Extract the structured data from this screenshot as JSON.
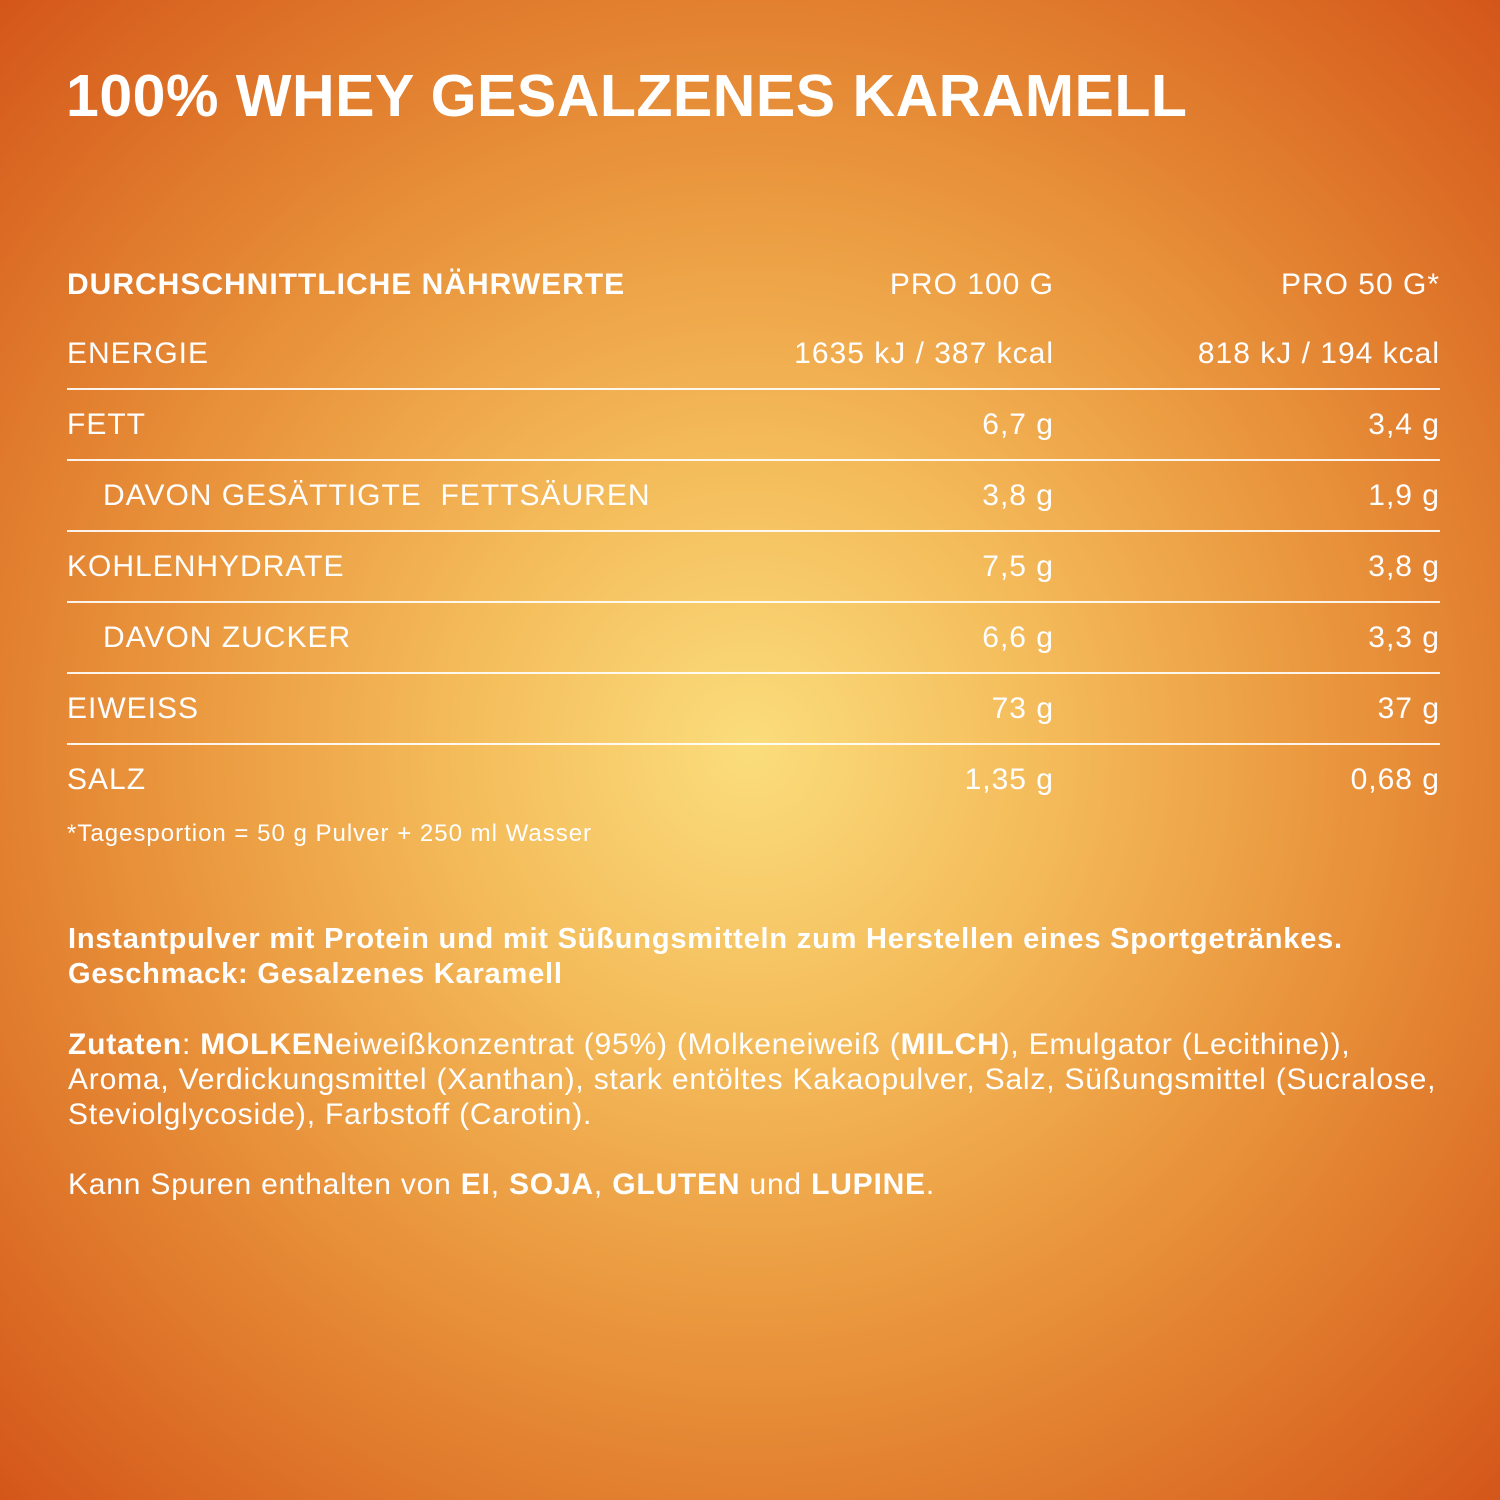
{
  "header": {
    "title": "100% WHEY GESALZENES KARAMELL"
  },
  "table": {
    "columns": [
      "DURCHSCHNITTLICHE NÄHRWERTE",
      "PRO 100 G",
      "PRO 50 G*"
    ],
    "rows": [
      [
        "ENERGIE",
        "1635 kJ / 387 kcal",
        "818 kJ / 194 kcal"
      ],
      [
        "FETT",
        "6,7 g",
        "3,4 g"
      ],
      [
        "DAVON GESÄTTIGTE  FETTSÄUREN",
        "3,8 g",
        "1,9 g"
      ],
      [
        "KOHLENHYDRATE",
        "7,5 g",
        "3,8 g"
      ],
      [
        "DAVON ZUCKER",
        "6,6 g",
        "3,3 g"
      ],
      [
        "EIWEISS",
        "73 g",
        "37 g"
      ],
      [
        "SALZ",
        "1,35 g",
        "0,68 g"
      ]
    ],
    "indented_rows": [
      2,
      4
    ]
  },
  "footnote": "*Tagesportion = 50 g Pulver + 250 ml Wasser",
  "description": "Instantpulver mit Protein und mit Süßungsmitteln zum Herstellen eines Sportgetränkes. Geschmack: Gesalzenes Karamell",
  "ingredients": [
    "Zutaten",
    ": ",
    "MOLKEN",
    "eiweißkonzentrat (95%) (Molkeneiweiß (",
    "MILCH",
    "), Emulgator (Lecithine)), Aroma, Verdickungsmittel (Xanthan), stark entöltes Kakaopulver, Salz, Süßungsmittel (Sucralose, Steviolglycoside), Farbstoff (Carotin)."
  ],
  "traces": [
    "Kann Spuren enthalten von ",
    "EI",
    ", ",
    "SOJA",
    ", ",
    "GLUTEN",
    " und ",
    "LUPINE",
    "."
  ]
}
